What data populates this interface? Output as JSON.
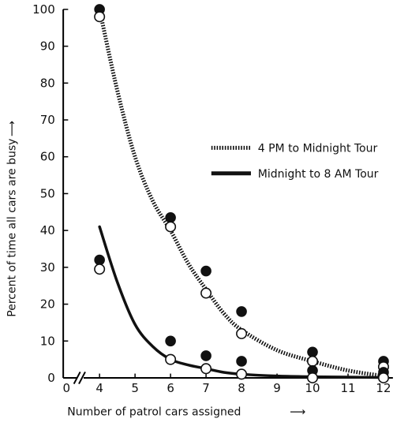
{
  "chart_data": {
    "type": "line",
    "title": "",
    "xlabel": "Number of patrol cars assigned",
    "ylabel": "Percent of time all cars are busy",
    "xlim": [
      0,
      12
    ],
    "ylim": [
      0,
      100
    ],
    "axis_break_after": 0,
    "x_ticks": [
      0,
      4,
      5,
      6,
      7,
      8,
      9,
      10,
      11,
      12
    ],
    "y_ticks": [
      0,
      10,
      20,
      30,
      40,
      50,
      60,
      70,
      80,
      90,
      100
    ],
    "grid": false,
    "legend_position": "right",
    "series": [
      {
        "name": "4 PM to Midnight Tour",
        "line_style": "dotted",
        "curve": {
          "x": [
            4,
            4.5,
            5,
            5.5,
            6,
            6.5,
            7,
            7.5,
            8,
            9,
            10,
            11,
            12
          ],
          "y": [
            100,
            78,
            60,
            48,
            40,
            31,
            24,
            17.5,
            13,
            7.5,
            4.5,
            2,
            0.5
          ]
        },
        "observed": {
          "x": [
            4,
            6,
            7,
            8,
            10,
            12
          ],
          "y": [
            100,
            43.5,
            29,
            18,
            7,
            4.5
          ]
        },
        "computed": {
          "x": [
            4,
            6,
            7,
            8,
            10,
            12
          ],
          "y": [
            98,
            41,
            23,
            12,
            4.5,
            3
          ]
        }
      },
      {
        "name": "Midnight to 8 AM Tour",
        "line_style": "solid",
        "curve": {
          "x": [
            4,
            4.5,
            5,
            5.5,
            6,
            6.5,
            7,
            7.5,
            8,
            9,
            10,
            11,
            12
          ],
          "y": [
            41,
            26,
            14.5,
            8.5,
            5,
            3.5,
            2.5,
            1.5,
            1,
            0.5,
            0.3,
            0.2,
            0.1
          ]
        },
        "observed": {
          "x": [
            4,
            6,
            7,
            8,
            10,
            12
          ],
          "y": [
            32,
            10,
            6,
            4.5,
            2,
            1.5
          ]
        },
        "computed": {
          "x": [
            4,
            6,
            7,
            8,
            10,
            12
          ],
          "y": [
            29.5,
            5,
            2.5,
            1,
            0,
            0
          ]
        }
      }
    ]
  }
}
